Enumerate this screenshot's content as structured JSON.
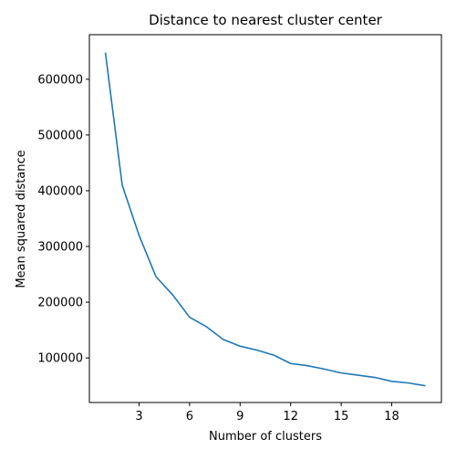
{
  "chart_data": {
    "type": "line",
    "title": "Distance to nearest cluster center",
    "xlabel": "Number of clusters",
    "ylabel": "Mean squared distance",
    "xlim": [
      0.05,
      20.95
    ],
    "ylim": [
      20000,
      680000
    ],
    "xticks": [
      3,
      6,
      9,
      12,
      15,
      18
    ],
    "xtick_labels": [
      "3",
      "6",
      "9",
      "12",
      "15",
      "18"
    ],
    "yticks": [
      100000,
      200000,
      300000,
      400000,
      500000,
      600000
    ],
    "ytick_labels": [
      "100000",
      "200000",
      "300000",
      "400000",
      "500000",
      "600000"
    ],
    "grid": false,
    "legend": "none",
    "series": [
      {
        "color": "#1f77b4",
        "x": [
          1,
          2,
          3,
          4,
          5,
          6,
          7,
          8,
          9,
          10,
          11,
          12,
          13,
          14,
          15,
          16,
          17,
          18,
          19,
          20
        ],
        "y": [
          648000,
          410000,
          320000,
          246000,
          213000,
          173000,
          156000,
          133000,
          121000,
          114000,
          105000,
          90000,
          86000,
          80000,
          73000,
          69000,
          65000,
          58000,
          55000,
          50000
        ]
      }
    ]
  }
}
